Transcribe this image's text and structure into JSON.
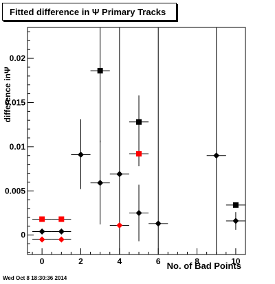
{
  "chart_data": {
    "type": "scatter",
    "title": "Fitted difference in  Ψ  Primary Tracks",
    "xlabel": "No. of Bad Points",
    "ylabel": "difference inΨ",
    "xlim": [
      -0.75,
      10.5
    ],
    "ylim": [
      -0.0022,
      0.0235
    ],
    "x_ticks": [
      "0",
      "2",
      "4",
      "6",
      "8",
      "10"
    ],
    "y_ticks": [
      "0",
      "0.005",
      "0.01",
      "0.015",
      "0.02"
    ],
    "grid": false,
    "series": [
      {
        "marker": "square",
        "color": "#000000",
        "points": [
          {
            "x": 3,
            "y": 0.0186,
            "xerr": 0.5,
            "ylo": 0.0105,
            "yhi": 0.0235
          },
          {
            "x": 5,
            "y": 0.0128,
            "xerr": 0.5,
            "ylo": 0.0078,
            "yhi": 0.0158
          },
          {
            "x": 10,
            "y": 0.0034,
            "xerr": 0.5,
            "ylo": 0.0034,
            "yhi": 0.0034
          }
        ]
      },
      {
        "marker": "square",
        "color": "#ff0000",
        "points": [
          {
            "x": 0,
            "y": 0.0018,
            "xerr": 0.5,
            "ylo": 0.0018,
            "yhi": 0.0018
          },
          {
            "x": 1,
            "y": 0.0018,
            "xerr": 0.5,
            "ylo": 0.0018,
            "yhi": 0.0018
          },
          {
            "x": 5,
            "y": 0.0092,
            "xerr": 0.5,
            "ylo": 0.0092,
            "yhi": 0.0092
          }
        ]
      },
      {
        "marker": "diamond",
        "color": "#000000",
        "points": [
          {
            "x": 0,
            "y": 0.0004,
            "xerr": 0.5,
            "ylo": 0.0004,
            "yhi": 0.0004
          },
          {
            "x": 1,
            "y": 0.0004,
            "xerr": 0.5,
            "ylo": 0.0004,
            "yhi": 0.0004
          },
          {
            "x": 2,
            "y": 0.0091,
            "xerr": 0.5,
            "ylo": 0.0052,
            "yhi": 0.0131
          },
          {
            "x": 3,
            "y": 0.0059,
            "xerr": 0.5,
            "ylo": 0.0012,
            "yhi": 0.0107
          },
          {
            "x": 4,
            "y": 0.0069,
            "xerr": 0.5,
            "ylo": -0.0022,
            "yhi": 0.0235
          },
          {
            "x": 5,
            "y": 0.0025,
            "xerr": 0.5,
            "ylo": -0.0007,
            "yhi": 0.0057
          },
          {
            "x": 6,
            "y": 0.0013,
            "xerr": 0.5,
            "ylo": -0.0022,
            "yhi": 0.0235
          },
          {
            "x": 9,
            "y": 0.009,
            "xerr": 0.5,
            "ylo": -0.0022,
            "yhi": 0.0235
          },
          {
            "x": 10,
            "y": 0.0016,
            "xerr": 0.5,
            "ylo": 0.0006,
            "yhi": 0.0026
          }
        ]
      },
      {
        "marker": "diamond",
        "color": "#ff0000",
        "points": [
          {
            "x": 0,
            "y": -0.0005,
            "xerr": 0.5,
            "ylo": -0.0005,
            "yhi": -0.0005
          },
          {
            "x": 1,
            "y": -0.0005,
            "xerr": 0.5,
            "ylo": -0.0005,
            "yhi": -0.0005
          },
          {
            "x": 4,
            "y": 0.0011,
            "xerr": 0.5,
            "ylo": 0.0011,
            "yhi": 0.0011
          }
        ]
      }
    ]
  },
  "footer": {
    "timestamp": "Wed Oct  8 18:30:36 2014"
  }
}
